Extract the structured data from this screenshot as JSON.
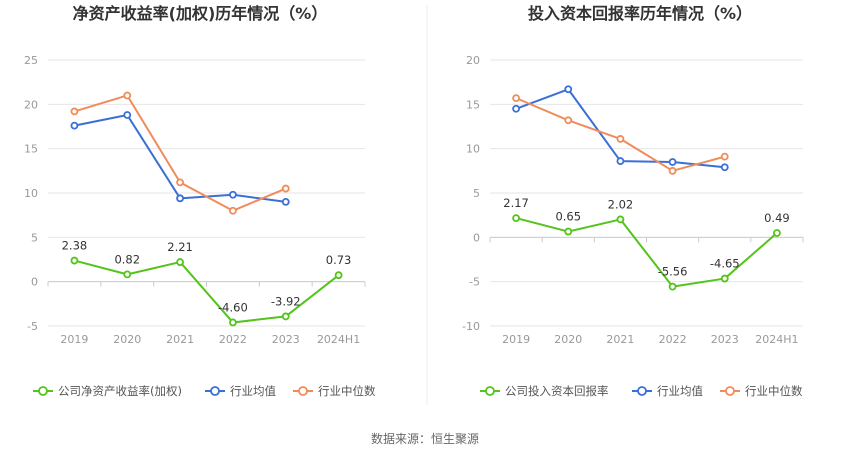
{
  "source_label": "数据来源：恒生聚源",
  "colors": {
    "company": "#52c41a",
    "avg": "#3a6fd8",
    "median": "#f08c5a",
    "grid": "#e6e6e6",
    "axis": "#cccccc"
  },
  "chart_data": [
    {
      "type": "line",
      "title": "净资产收益率(加权)历年情况（%）",
      "categories": [
        "2019",
        "2020",
        "2021",
        "2022",
        "2023",
        "2024H1"
      ],
      "ylim": [
        -5,
        25
      ],
      "yticks": [
        -5,
        0,
        5,
        10,
        15,
        20,
        25
      ],
      "grid": true,
      "legend_position": "bottom",
      "series": [
        {
          "name": "公司净资产收益率(加权)",
          "color": "#52c41a",
          "values": [
            2.38,
            0.82,
            2.21,
            -4.6,
            -3.92,
            0.73
          ],
          "labels": [
            "2.38",
            "0.82",
            "2.21",
            "-4.60",
            "-3.92",
            "0.73"
          ]
        },
        {
          "name": "行业均值",
          "color": "#3a6fd8",
          "values": [
            17.6,
            18.8,
            9.4,
            9.8,
            9.0,
            null
          ]
        },
        {
          "name": "行业中位数",
          "color": "#f08c5a",
          "values": [
            19.2,
            21.0,
            11.2,
            8.0,
            10.5,
            null
          ]
        }
      ]
    },
    {
      "type": "line",
      "title": "投入资本回报率历年情况（%）",
      "categories": [
        "2019",
        "2020",
        "2021",
        "2022",
        "2023",
        "2024H1"
      ],
      "ylim": [
        -10,
        20
      ],
      "yticks": [
        -10,
        -5,
        0,
        5,
        10,
        15,
        20
      ],
      "grid": true,
      "legend_position": "bottom",
      "series": [
        {
          "name": "公司投入资本回报率",
          "color": "#52c41a",
          "values": [
            2.17,
            0.65,
            2.02,
            -5.56,
            -4.65,
            0.49
          ],
          "labels": [
            "2.17",
            "0.65",
            "2.02",
            "-5.56",
            "-4.65",
            "0.49"
          ]
        },
        {
          "name": "行业均值",
          "color": "#3a6fd8",
          "values": [
            14.5,
            16.7,
            8.6,
            8.5,
            7.9,
            null
          ]
        },
        {
          "name": "行业中位数",
          "color": "#f08c5a",
          "values": [
            15.7,
            13.2,
            11.1,
            7.5,
            9.1,
            null
          ]
        }
      ]
    }
  ]
}
